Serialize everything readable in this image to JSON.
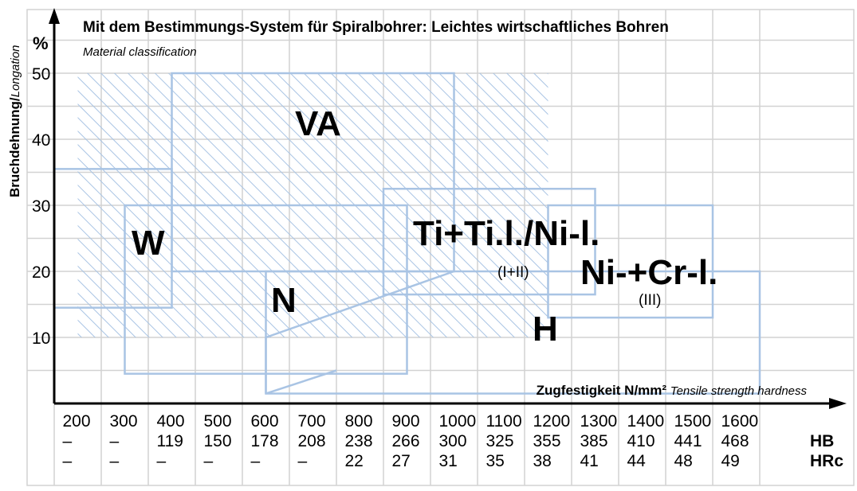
{
  "chart_data": {
    "type": "table",
    "title": "Mit dem Bestimmungs-System für Spiralbohrer: Leichtes wirtschaftliches Bohren",
    "subtitle": "Material classification",
    "ylabel": "Bruchdehnung/",
    "ylabel_italic": "Longation",
    "yunit": "%",
    "xlabel": "Zugfestigkeit N/mm²",
    "xlabel_italic": "Tensile strength hardness",
    "yticks": [
      10,
      20,
      30,
      40,
      50
    ],
    "xticks": [
      200,
      300,
      400,
      500,
      600,
      700,
      800,
      900,
      1000,
      1100,
      1200,
      1300,
      1400,
      1500,
      1600
    ],
    "hb": [
      "–",
      "–",
      "119",
      "150",
      "178",
      "208",
      "238",
      "266",
      "300",
      "325",
      "355",
      "385",
      "410",
      "441",
      "468"
    ],
    "hrc": [
      "–",
      "–",
      "–",
      "–",
      "–",
      "–",
      "22",
      "27",
      "31",
      "35",
      "38",
      "41",
      "44",
      "48",
      "49"
    ],
    "hb_label": "HB",
    "hrc_label": "HRc",
    "regions": [
      {
        "label": "VA",
        "sublabel": "",
        "x": [
          400,
          1000
        ],
        "y": [
          20,
          50
        ]
      },
      {
        "label": "W",
        "sublabel": "",
        "x": [
          150,
          400
        ],
        "y": [
          14.5,
          35.5
        ]
      },
      {
        "label": "N",
        "sublabel": "",
        "x": [
          300,
          900
        ],
        "y": [
          4.5,
          30
        ]
      },
      {
        "label": "Ti+Ti.l./Ni-l.",
        "sublabel": "(I+II)",
        "x": [
          850,
          1300
        ],
        "y": [
          16.5,
          32.5
        ]
      },
      {
        "label": "Ni-+Cr-l.",
        "sublabel": "(III)",
        "x": [
          1200,
          1550
        ],
        "y": [
          13,
          30
        ]
      },
      {
        "label": "H",
        "sublabel": "",
        "x": [
          600,
          1650
        ],
        "y": [
          1.5,
          20
        ]
      }
    ]
  }
}
